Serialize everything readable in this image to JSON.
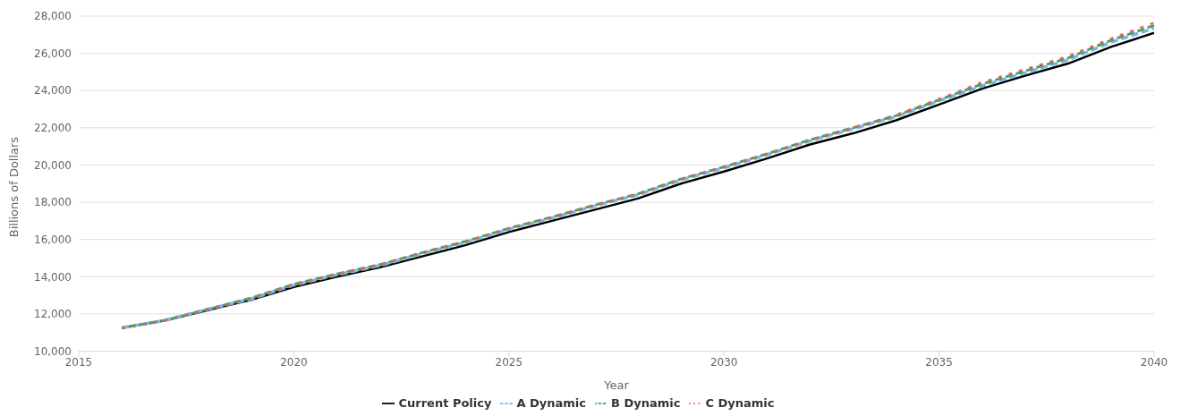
{
  "chart_data": {
    "type": "line",
    "xlabel": "Year",
    "ylabel": "Billions of Dollars",
    "x": [
      2016,
      2017,
      2018,
      2019,
      2020,
      2021,
      2022,
      2023,
      2024,
      2025,
      2026,
      2027,
      2028,
      2029,
      2030,
      2031,
      2032,
      2033,
      2034,
      2035,
      2036,
      2037,
      2038,
      2039,
      2040
    ],
    "series": [
      {
        "name": "Current Policy",
        "color": "#000000",
        "line_style": "solid",
        "values": [
          11250,
          11650,
          12200,
          12750,
          13450,
          14000,
          14500,
          15100,
          15700,
          16400,
          17000,
          17600,
          18200,
          19000,
          19650,
          20350,
          21100,
          21700,
          22400,
          23250,
          24100,
          24800,
          25450,
          26350,
          27100
        ]
      },
      {
        "name": "A Dynamic",
        "color": "#7cb5ec",
        "line_style": "dashed",
        "values": [
          11250,
          11650,
          12250,
          12800,
          13550,
          14100,
          14600,
          15250,
          15850,
          16550,
          17150,
          17800,
          18400,
          19200,
          19850,
          20550,
          21300,
          21950,
          22600,
          23450,
          24250,
          24950,
          25650,
          26600,
          27350
        ]
      },
      {
        "name": "B Dynamic",
        "color": "#4e9f5a",
        "line_style": "dashed",
        "values": [
          11250,
          11650,
          12250,
          12850,
          13600,
          14150,
          14650,
          15300,
          15900,
          16600,
          17200,
          17850,
          18450,
          19250,
          19900,
          20600,
          21350,
          22000,
          22650,
          23500,
          24350,
          25050,
          25750,
          26700,
          27500
        ]
      },
      {
        "name": "C Dynamic",
        "color": "#e8605e",
        "line_style": "dashed",
        "values": [
          11250,
          11650,
          12250,
          12850,
          13600,
          14150,
          14650,
          15300,
          15900,
          16600,
          17200,
          17850,
          18450,
          19250,
          19900,
          20600,
          21350,
          22000,
          22700,
          23550,
          24450,
          25150,
          25850,
          26800,
          27650
        ]
      }
    ],
    "xlim": [
      2015,
      2040
    ],
    "xticks": [
      2015,
      2020,
      2025,
      2030,
      2035,
      2040
    ],
    "ylim": [
      10000,
      28000
    ],
    "yticks": [
      {
        "value": 10000,
        "label": "10,000"
      },
      {
        "value": 12000,
        "label": "12,000"
      },
      {
        "value": 14000,
        "label": "14,000"
      },
      {
        "value": 16000,
        "label": "16,000"
      },
      {
        "value": 18000,
        "label": "18,000"
      },
      {
        "value": 20000,
        "label": "20,000"
      },
      {
        "value": 22000,
        "label": "22,000"
      },
      {
        "value": 24000,
        "label": "24,000"
      },
      {
        "value": 26000,
        "label": "26,000"
      },
      {
        "value": 28000,
        "label": "28,000"
      }
    ],
    "grid": "y",
    "legend": "bottom",
    "marker": "none"
  }
}
